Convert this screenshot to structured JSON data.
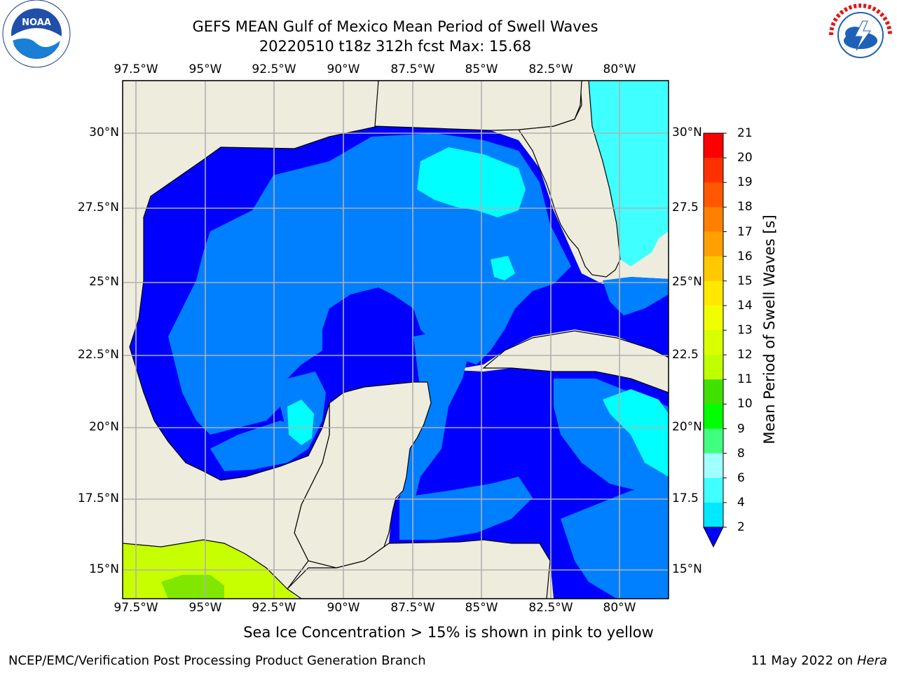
{
  "title_line1": "GEFS MEAN Gulf of Mexico Mean Period of Swell Waves",
  "title_line2": "20220510 t18z 312h fcst   Max: 15.68",
  "caption": "Sea Ice Concentration > 15% is shown in pink to yellow",
  "footer_left": "NCEP/EMC/Verification Post Processing Product Generation Branch",
  "footer_right_date": "11 May 2022 on",
  "footer_right_host": "Hera",
  "logos": {
    "left": "noaa-logo",
    "right": "nws-logo"
  },
  "map": {
    "longitude_labels": [
      "97.5°W",
      "95°W",
      "92.5°W",
      "90°W",
      "87.5°W",
      "85°W",
      "82.5°W",
      "80°W"
    ],
    "latitude_labels_left": [
      "30°N",
      "27.5°N",
      "25°N",
      "22.5°N",
      "20°N",
      "17.5°N",
      "15°N"
    ],
    "latitude_labels_right": [
      "30°N",
      "27.5",
      "25°N",
      "22.5",
      "20°N",
      "17.5",
      "15°N"
    ],
    "land_color": "#eeecdc",
    "ocean_colors": {
      "2-4": "#0000ff",
      "4-6": "#0080ff",
      "6-8": "#00ffff"
    },
    "hot_colors": {
      "land_region_sw": "#c8ff00",
      "land_region_sw_alt": "#a0f000"
    }
  },
  "colorbar": {
    "label": "Mean Period of Swell Waves [s]",
    "ticks": [
      "21",
      "20",
      "19",
      "18",
      "17",
      "16",
      "15",
      "14",
      "13",
      "12",
      "11",
      "10",
      "9",
      "8",
      "6",
      "4",
      "2"
    ],
    "colors": [
      "#ff0000",
      "#ff3000",
      "#ff5800",
      "#ff8000",
      "#ffa000",
      "#ffc800",
      "#ffe800",
      "#f0ff00",
      "#d8ff00",
      "#c0ff00",
      "#40e000",
      "#00ff00",
      "#40ff80",
      "#a0ffff",
      "#40ffff",
      "#00e8ff",
      "#0080ff",
      "#0000ff"
    ]
  }
}
